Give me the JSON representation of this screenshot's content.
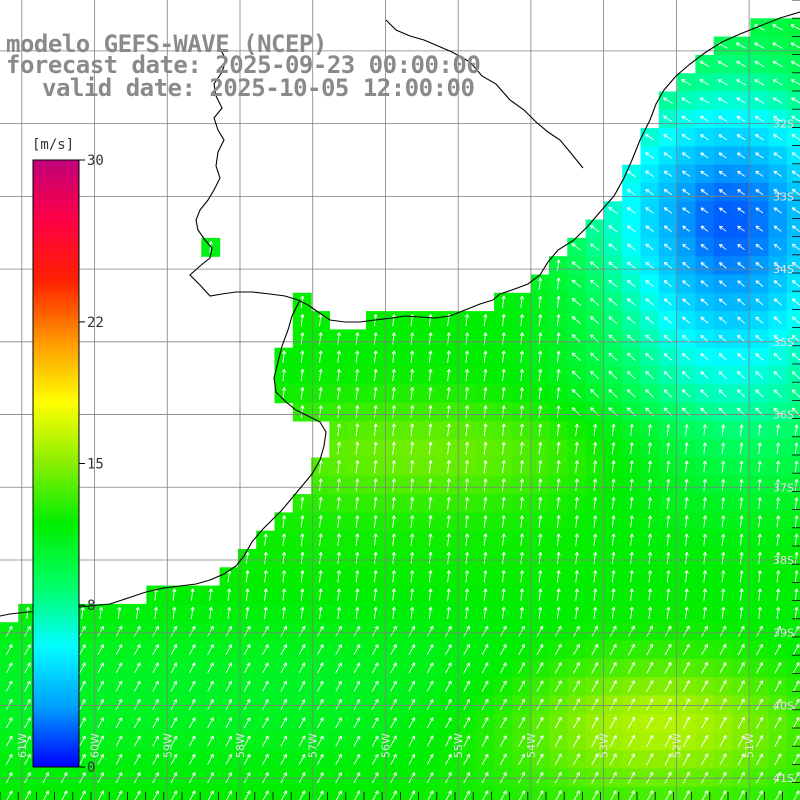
{
  "title": {
    "model": "modelo GEFS-WAVE (NCEP)",
    "forecast": "forecast date: 2025-09-23 00:00:00",
    "valid": "valid date: 2025-10-05 12:00:00"
  },
  "colorbar": {
    "unit": "[m/s]",
    "ticks": [
      {
        "value": 30,
        "label": "30"
      },
      {
        "value": 22,
        "label": "22"
      },
      {
        "value": 15,
        "label": "15"
      },
      {
        "value": 8,
        "label": "8"
      },
      {
        "value": 0,
        "label": "0"
      }
    ],
    "min": 0,
    "max": 30,
    "colors": [
      "#0000ff",
      "#00a0ff",
      "#00ffff",
      "#00ff66",
      "#00ee00",
      "#88ee00",
      "#ffff00",
      "#ff9900",
      "#ff2200",
      "#ff0044",
      "#c0007a"
    ]
  },
  "map": {
    "lon_range": [
      -61.3,
      -50.3
    ],
    "lat_range": [
      -41.3,
      -30.3
    ],
    "lon_labels": [
      "61W",
      "60W",
      "59W",
      "58W",
      "57W",
      "56W",
      "55W",
      "54W",
      "53W",
      "52W",
      "51W"
    ],
    "lat_labels": [
      "32S",
      "33S",
      "34S",
      "35S",
      "36S",
      "37S",
      "38S",
      "39S",
      "40S",
      "41S"
    ],
    "grid_color": "#808080",
    "coast_color": "#000000",
    "arrow_color": "#ffffff"
  }
}
